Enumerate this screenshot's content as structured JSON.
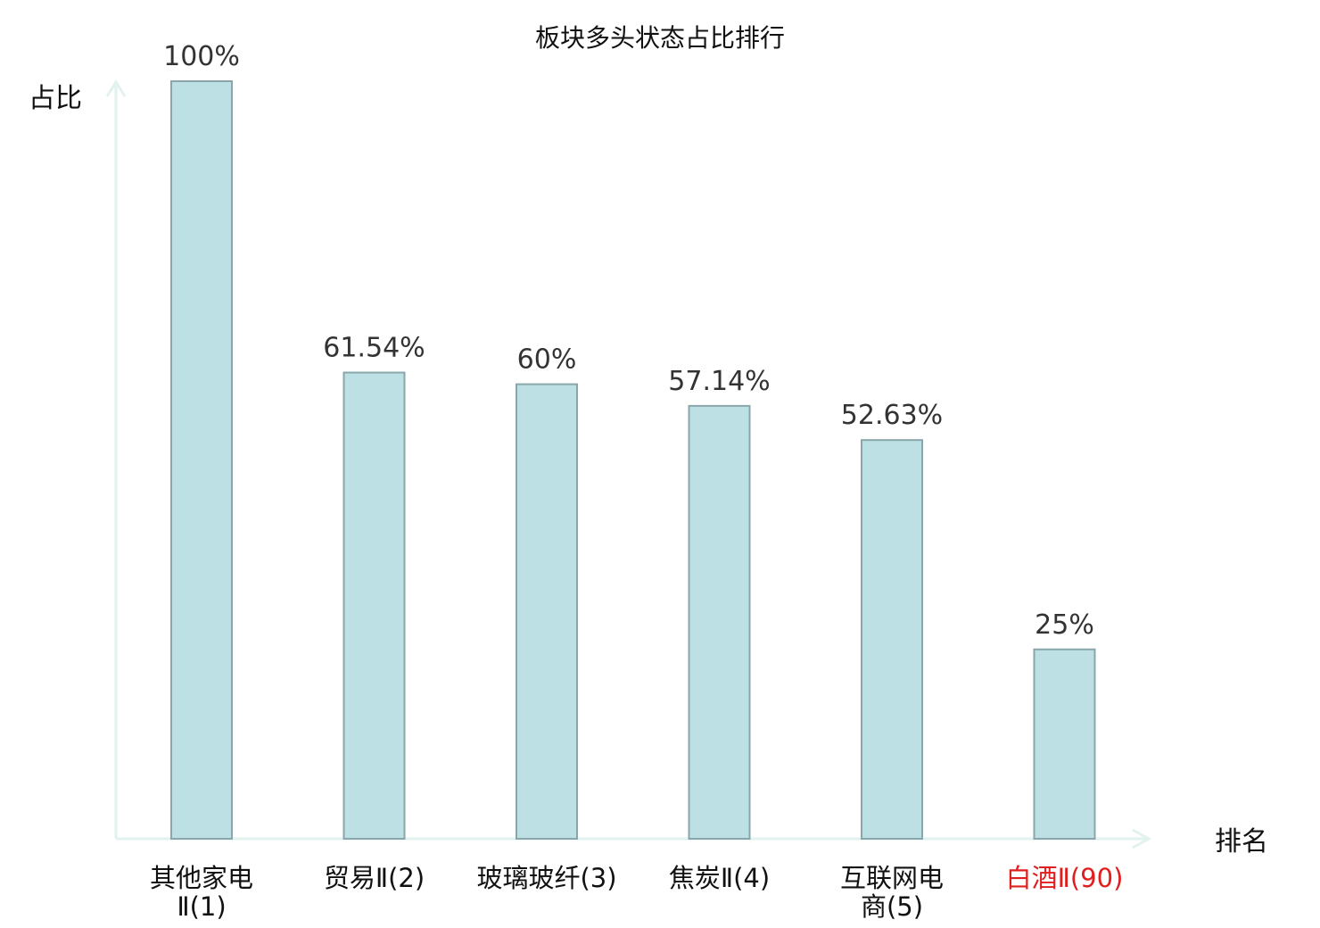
{
  "chart_data": {
    "type": "bar",
    "title": "板块多头状态占比排行",
    "ylabel": "占比",
    "xlabel": "排名",
    "ylim": [
      0,
      100
    ],
    "grid": false,
    "bar_color": "#bce0e3",
    "bar_edge_color": "#8aa6aa",
    "axis_color": "#e2f2ef",
    "highlight_color": "#e01e1e",
    "categories": [
      {
        "lines": [
          "其他家电",
          "Ⅱ(1)"
        ],
        "value": 100,
        "label": "100%",
        "highlight": false
      },
      {
        "lines": [
          "贸易Ⅱ(2)"
        ],
        "value": 61.54,
        "label": "61.54%",
        "highlight": false
      },
      {
        "lines": [
          "玻璃玻纤(3)"
        ],
        "value": 60,
        "label": "60%",
        "highlight": false
      },
      {
        "lines": [
          "焦炭Ⅱ(4)"
        ],
        "value": 57.14,
        "label": "57.14%",
        "highlight": false
      },
      {
        "lines": [
          "互联网电",
          "商(5)"
        ],
        "value": 52.63,
        "label": "52.63%",
        "highlight": false
      },
      {
        "lines": [
          "白酒Ⅱ(90)"
        ],
        "value": 25,
        "label": "25%",
        "highlight": true
      }
    ]
  }
}
